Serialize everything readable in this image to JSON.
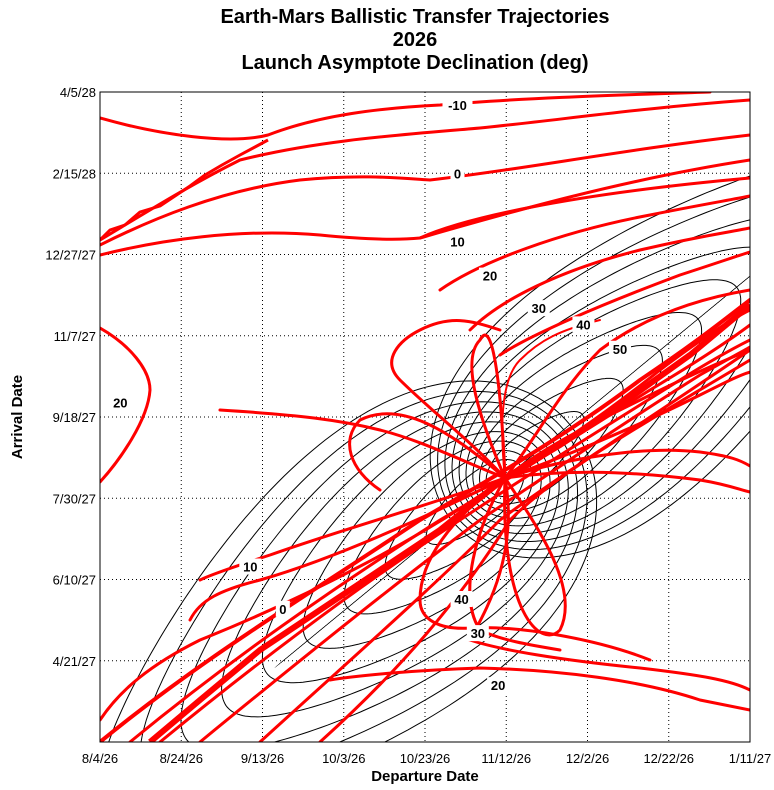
{
  "chart_data": {
    "type": "contour",
    "title": [
      "Earth-Mars Ballistic Transfer Trajectories",
      "2026",
      "Launch Asymptote Declination (deg)"
    ],
    "xlabel": "Departure Date",
    "ylabel": "Arrival Date",
    "x_ticks": [
      "8/4/26",
      "8/24/26",
      "9/13/26",
      "10/3/26",
      "10/23/26",
      "11/12/26",
      "12/2/26",
      "12/22/26",
      "1/11/27"
    ],
    "y_ticks": [
      "4/21/27",
      "6/10/27",
      "7/30/27",
      "9/18/27",
      "11/7/27",
      "12/27/27",
      "2/15/28",
      "4/5/28"
    ],
    "xlim": [
      "8/4/26",
      "1/11/27"
    ],
    "ylim": [
      "3/2/27",
      "4/5/28"
    ],
    "grid": true,
    "colors": {
      "declination": "#ff0000",
      "energy": "#000000",
      "grid": "#000000"
    },
    "declination_contour_labels": [
      {
        "label": "-10",
        "departure": "10/31/26",
        "arrival": "3/28/28"
      },
      {
        "label": "0",
        "departure": "10/31/26",
        "arrival": "2/15/28"
      },
      {
        "label": "10",
        "departure": "10/31/26",
        "arrival": "1/4/28"
      },
      {
        "label": "20",
        "departure": "11/8/26",
        "arrival": "12/14/27"
      },
      {
        "label": "30",
        "departure": "11/20/26",
        "arrival": "11/24/27"
      },
      {
        "label": "40",
        "departure": "12/1/26",
        "arrival": "11/14/27"
      },
      {
        "label": "50",
        "departure": "12/10/26",
        "arrival": "10/30/27"
      },
      {
        "label": "20",
        "departure": "8/9/26",
        "arrival": "9/27/27"
      },
      {
        "label": "10",
        "departure": "9/10/26",
        "arrival": "6/18/27"
      },
      {
        "label": "0",
        "departure": "9/18/26",
        "arrival": "5/23/27"
      },
      {
        "label": "40",
        "departure": "11/1/26",
        "arrival": "5/29/27"
      },
      {
        "label": "30",
        "departure": "11/5/26",
        "arrival": "5/8/27"
      },
      {
        "label": "20",
        "departure": "11/10/26",
        "arrival": "4/6/27"
      }
    ]
  }
}
